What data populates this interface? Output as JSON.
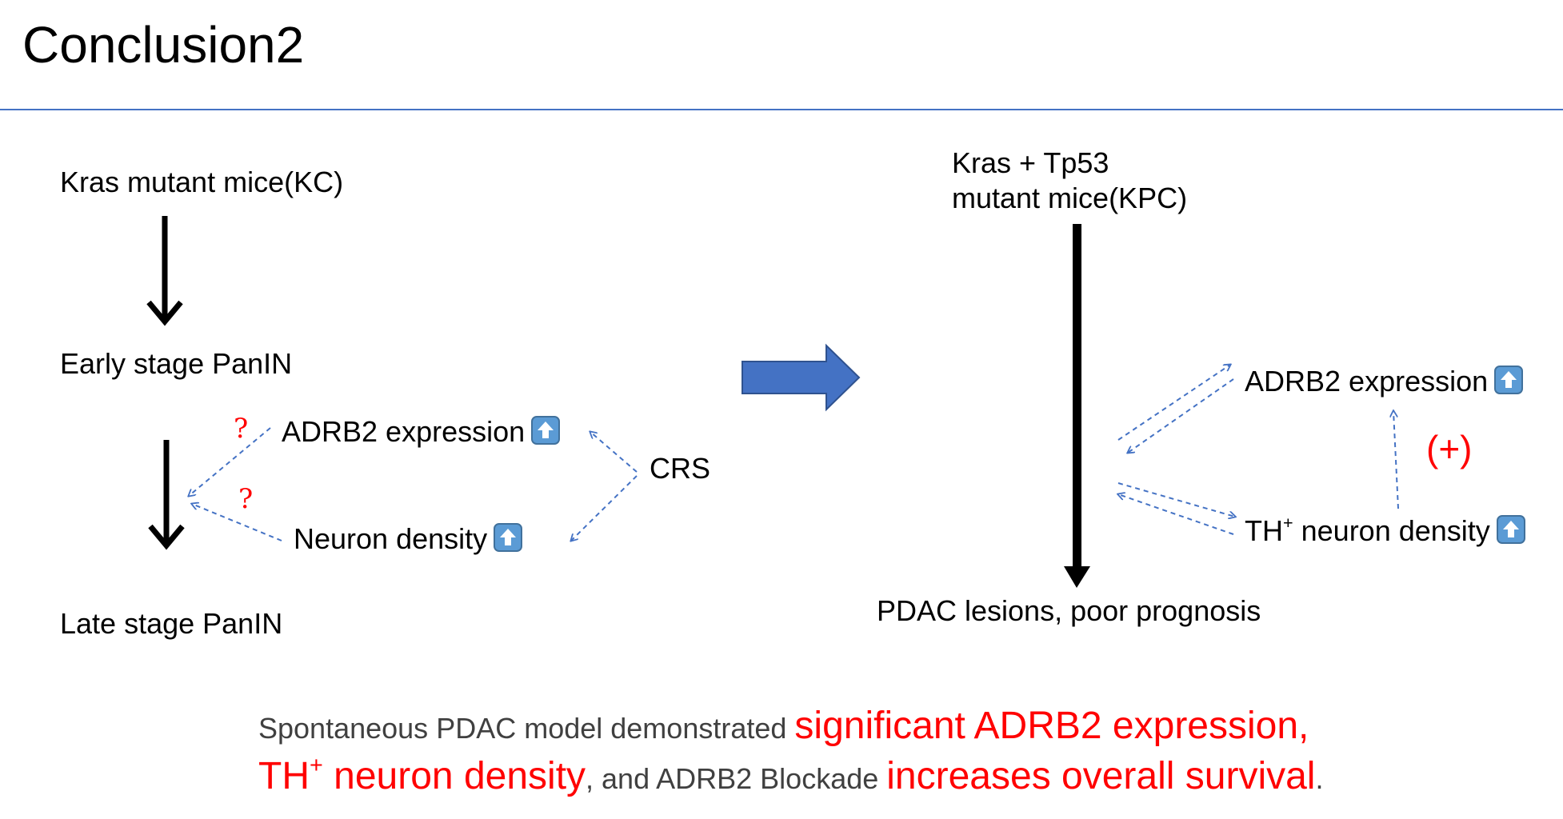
{
  "title": "Conclusion2",
  "left": {
    "top_label": "Kras mutant mice(KC)",
    "mid_label": "Early stage PanIN",
    "bottom_label": "Late stage PanIN",
    "adrb2_label": "ADRB2 expression",
    "neuron_label": "Neuron density",
    "crs_label": "CRS",
    "question_mark": "?"
  },
  "right": {
    "top_label_line1": "Kras + Tp53",
    "top_label_line2": "mutant mice(KPC)",
    "bottom_label": "PDAC lesions, poor prognosis",
    "adrb2_label": "ADRB2 expression",
    "th_prefix": "TH",
    "th_superscript": "+",
    "th_suffix": " neuron density",
    "positive_label": "(+)"
  },
  "summary": {
    "part1": "Spontaneous PDAC model demonstrated ",
    "part2": "significant ADRB2 expression,",
    "part3_prefix": "TH",
    "part3_superscript": "+",
    "part3_suffix": " neuron density",
    "part4": ", and ADRB2 Blockade ",
    "part5": "increases overall survival",
    "part6": "."
  },
  "icons": {
    "up": "up-arrow-button-icon"
  },
  "colors": {
    "accent": "#4472c4",
    "emphasis": "#ff0000",
    "dashed": "#4472c4",
    "icon": "#5b9bd5"
  }
}
